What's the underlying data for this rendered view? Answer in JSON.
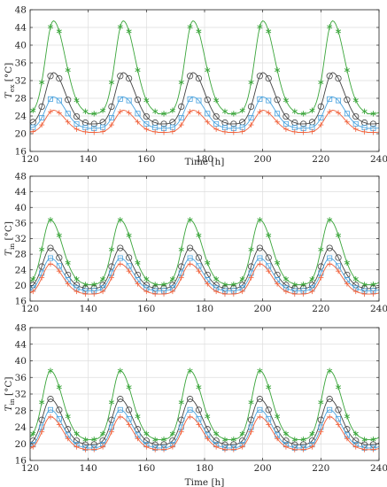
{
  "figure": {
    "colors": {
      "green": "#3aa53a",
      "black": "#444444",
      "blue": "#4aa3df",
      "red": "#f0603a",
      "grid": "#dedede",
      "axis": "#262626"
    }
  },
  "chart_data": [
    {
      "type": "line",
      "ylabel_main": "T",
      "ylabel_sub": "ex",
      "ylabel_unit": " [°C]",
      "xlabel": "Time [h]",
      "xlim": [
        120,
        240
      ],
      "ylim": [
        16,
        48
      ],
      "xticks": [
        120,
        140,
        160,
        180,
        200,
        220,
        240
      ],
      "yticks": [
        16,
        20,
        24,
        28,
        32,
        36,
        40,
        44,
        48
      ],
      "grid": true,
      "period": 24,
      "peak_hour_offset": 8,
      "series": [
        {
          "color_key": "green",
          "marker": "asterisk",
          "min": 24.5,
          "max": 45.5
        },
        {
          "color_key": "black",
          "marker": "circle",
          "min": 22.2,
          "max": 33.8
        },
        {
          "color_key": "blue",
          "marker": "square",
          "min": 21.2,
          "max": 28.3
        },
        {
          "color_key": "red",
          "marker": "plus",
          "min": 20.3,
          "max": 25.3
        }
      ]
    },
    {
      "type": "line",
      "ylabel_main": "T",
      "ylabel_sub": "in",
      "ylabel_unit": " [°C]",
      "xlabel": "",
      "xlim": [
        120,
        240
      ],
      "ylim": [
        16,
        48
      ],
      "xticks": [
        120,
        140,
        160,
        180,
        200,
        220,
        240
      ],
      "yticks": [
        16,
        20,
        24,
        28,
        32,
        36,
        40,
        44,
        48
      ],
      "grid": true,
      "period": 24,
      "peak_hour_offset": 7,
      "series": [
        {
          "color_key": "green",
          "marker": "asterisk",
          "min": 20.2,
          "max": 36.8
        },
        {
          "color_key": "black",
          "marker": "circle",
          "min": 19.2,
          "max": 29.6
        },
        {
          "color_key": "blue",
          "marker": "square",
          "min": 18.6,
          "max": 27.0
        },
        {
          "color_key": "red",
          "marker": "plus",
          "min": 17.8,
          "max": 25.5
        }
      ]
    },
    {
      "type": "line",
      "ylabel_main": "T",
      "ylabel_sub": "in",
      "ylabel_unit": " [°C]",
      "xlabel": "Time [h]",
      "xlim": [
        120,
        240
      ],
      "ylim": [
        16,
        48
      ],
      "xticks": [
        120,
        140,
        160,
        180,
        200,
        220,
        240
      ],
      "yticks": [
        16,
        20,
        24,
        28,
        32,
        36,
        40,
        44,
        48
      ],
      "grid": true,
      "period": 24,
      "peak_hour_offset": 7,
      "series": [
        {
          "color_key": "green",
          "marker": "asterisk",
          "min": 21.0,
          "max": 37.6
        },
        {
          "color_key": "black",
          "marker": "circle",
          "min": 19.8,
          "max": 30.8
        },
        {
          "color_key": "blue",
          "marker": "square",
          "min": 19.0,
          "max": 28.2
        },
        {
          "color_key": "red",
          "marker": "plus",
          "min": 18.6,
          "max": 26.5
        }
      ]
    }
  ]
}
